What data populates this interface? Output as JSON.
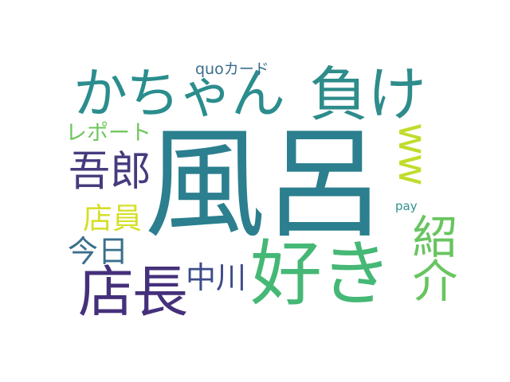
{
  "wordcloud": {
    "words": [
      {
        "text": "風呂",
        "color": "#2b7f8e"
      },
      {
        "text": "かちゃん",
        "color": "#2b8d8d"
      },
      {
        "text": "負け",
        "color": "#2e8c8b"
      },
      {
        "text": "好き",
        "color": "#45b875"
      },
      {
        "text": "店長",
        "color": "#45307b"
      },
      {
        "text": "吾郎",
        "color": "#463b7d"
      },
      {
        "text": "店員",
        "color": "#d6df28"
      },
      {
        "text": "今日",
        "color": "#3b6f8d"
      },
      {
        "text": "中川",
        "color": "#3d4c89"
      },
      {
        "text": "レポート",
        "color": "#6fc65c"
      },
      {
        "text": "quoカード",
        "color": "#3a6d8e"
      },
      {
        "text": "pay",
        "color": "#2d938a"
      },
      {
        "text": "ww",
        "color": "#c1dc2c"
      },
      {
        "text": "紹介",
        "color": "#68c560"
      }
    ]
  }
}
